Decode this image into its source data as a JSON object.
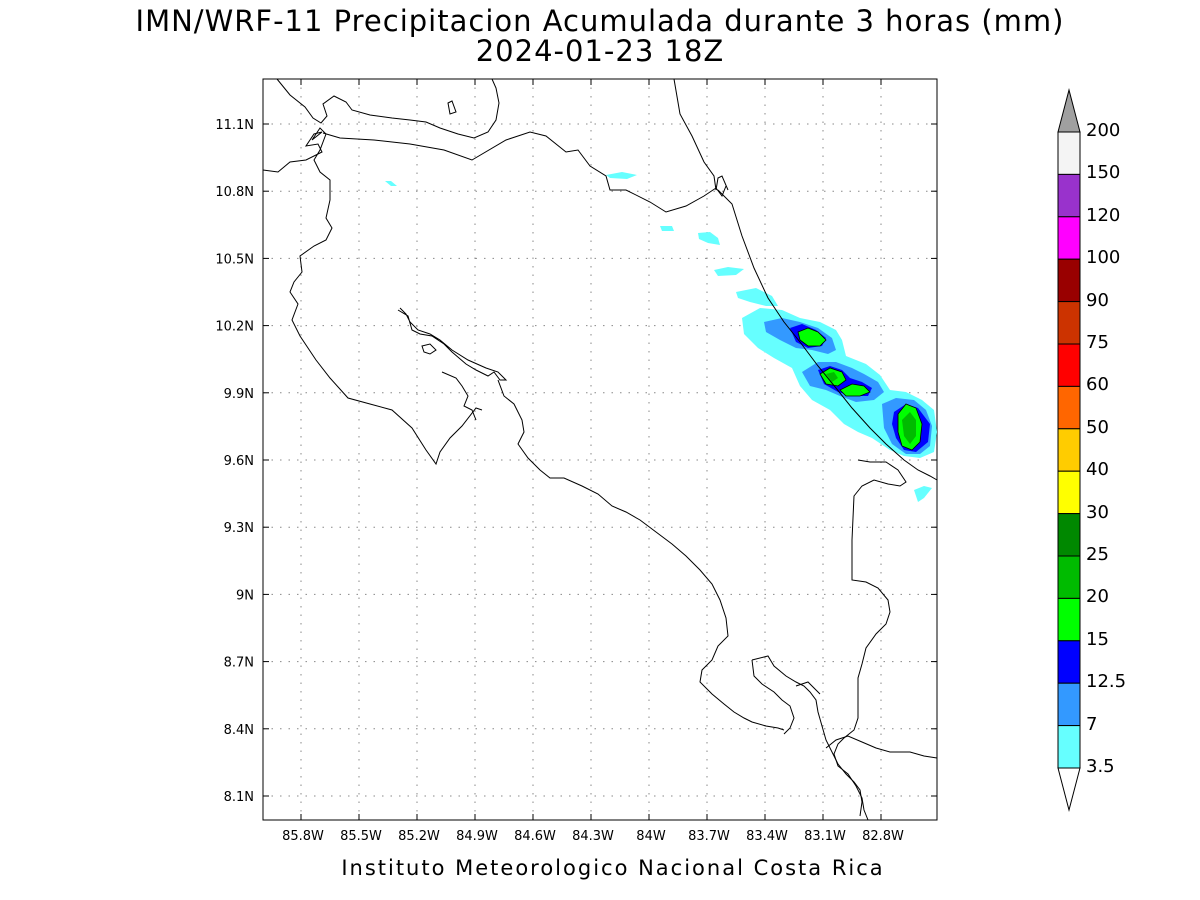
{
  "title": {
    "line1": "IMN/WRF-11 Precipitacion Acumulada durante 3 horas (mm)",
    "line2": "2024-01-23 18Z"
  },
  "footer": "Instituto Meteorologico Nacional Costa Rica",
  "map": {
    "lon_labels": [
      "85.8W",
      "85.5W",
      "85.2W",
      "84.9W",
      "84.6W",
      "84.3W",
      "84W",
      "83.7W",
      "83.4W",
      "83.1W",
      "82.8W"
    ],
    "lat_labels": [
      "11.1N",
      "10.8N",
      "10.5N",
      "10.2N",
      "9.9N",
      "9.6N",
      "9.3N",
      "9N",
      "8.7N",
      "8.4N",
      "8.1N"
    ],
    "grid": "dotted",
    "region": "Costa Rica"
  },
  "colorbar": {
    "labels": [
      "200",
      "150",
      "120",
      "100",
      "90",
      "75",
      "60",
      "50",
      "40",
      "30",
      "25",
      "20",
      "15",
      "12.5",
      "7",
      "3.5"
    ],
    "colors": [
      "#a0a0a0",
      "#f4f4f4",
      "#9932cc",
      "#ff00ff",
      "#990000",
      "#cc3300",
      "#ff0000",
      "#ff6600",
      "#ffcc00",
      "#ffff00",
      "#008800",
      "#00bb00",
      "#00ff00",
      "#0000ff",
      "#3399ff",
      "#66ffff",
      "#ffffff"
    ]
  }
}
